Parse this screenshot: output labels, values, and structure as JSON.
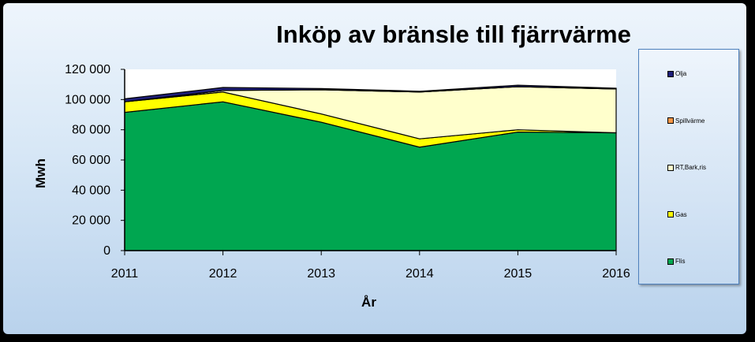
{
  "chart_data": {
    "type": "area",
    "stacked": true,
    "title": "Inköp av bränsle till fjärrvärme",
    "xlabel": "År",
    "ylabel": "Mwh",
    "x": [
      "2011",
      "2012",
      "2013",
      "2014",
      "2015",
      "2016"
    ],
    "ylim": [
      0,
      120000
    ],
    "yticks": [
      0,
      20000,
      40000,
      60000,
      80000,
      100000,
      120000
    ],
    "ytick_labels": [
      "0",
      "20 000",
      "40 000",
      "60 000",
      "80 000",
      "100 000",
      "120 000"
    ],
    "legend_position": "right",
    "series": [
      {
        "name": "Flis",
        "color": "#00a650",
        "values": [
          91500,
          98500,
          85000,
          68500,
          78500,
          78000
        ]
      },
      {
        "name": "Gas",
        "color": "#ffff00",
        "values": [
          7000,
          6500,
          5500,
          5500,
          1500,
          0
        ]
      },
      {
        "name": "RT,Bark,ris",
        "color": "#ffffcc",
        "values": [
          0,
          1000,
          16000,
          31000,
          28500,
          29000
        ]
      },
      {
        "name": "Spillvärme",
        "color": "#f79646",
        "values": [
          0,
          0,
          0,
          0,
          0,
          0
        ]
      },
      {
        "name": "Olja",
        "color": "#1f1f7a",
        "values": [
          2000,
          2000,
          800,
          500,
          1000,
          500
        ]
      }
    ],
    "legend_order": [
      "Olja",
      "Spillvärme",
      "RT,Bark,ris",
      "Gas",
      "Flis"
    ]
  }
}
